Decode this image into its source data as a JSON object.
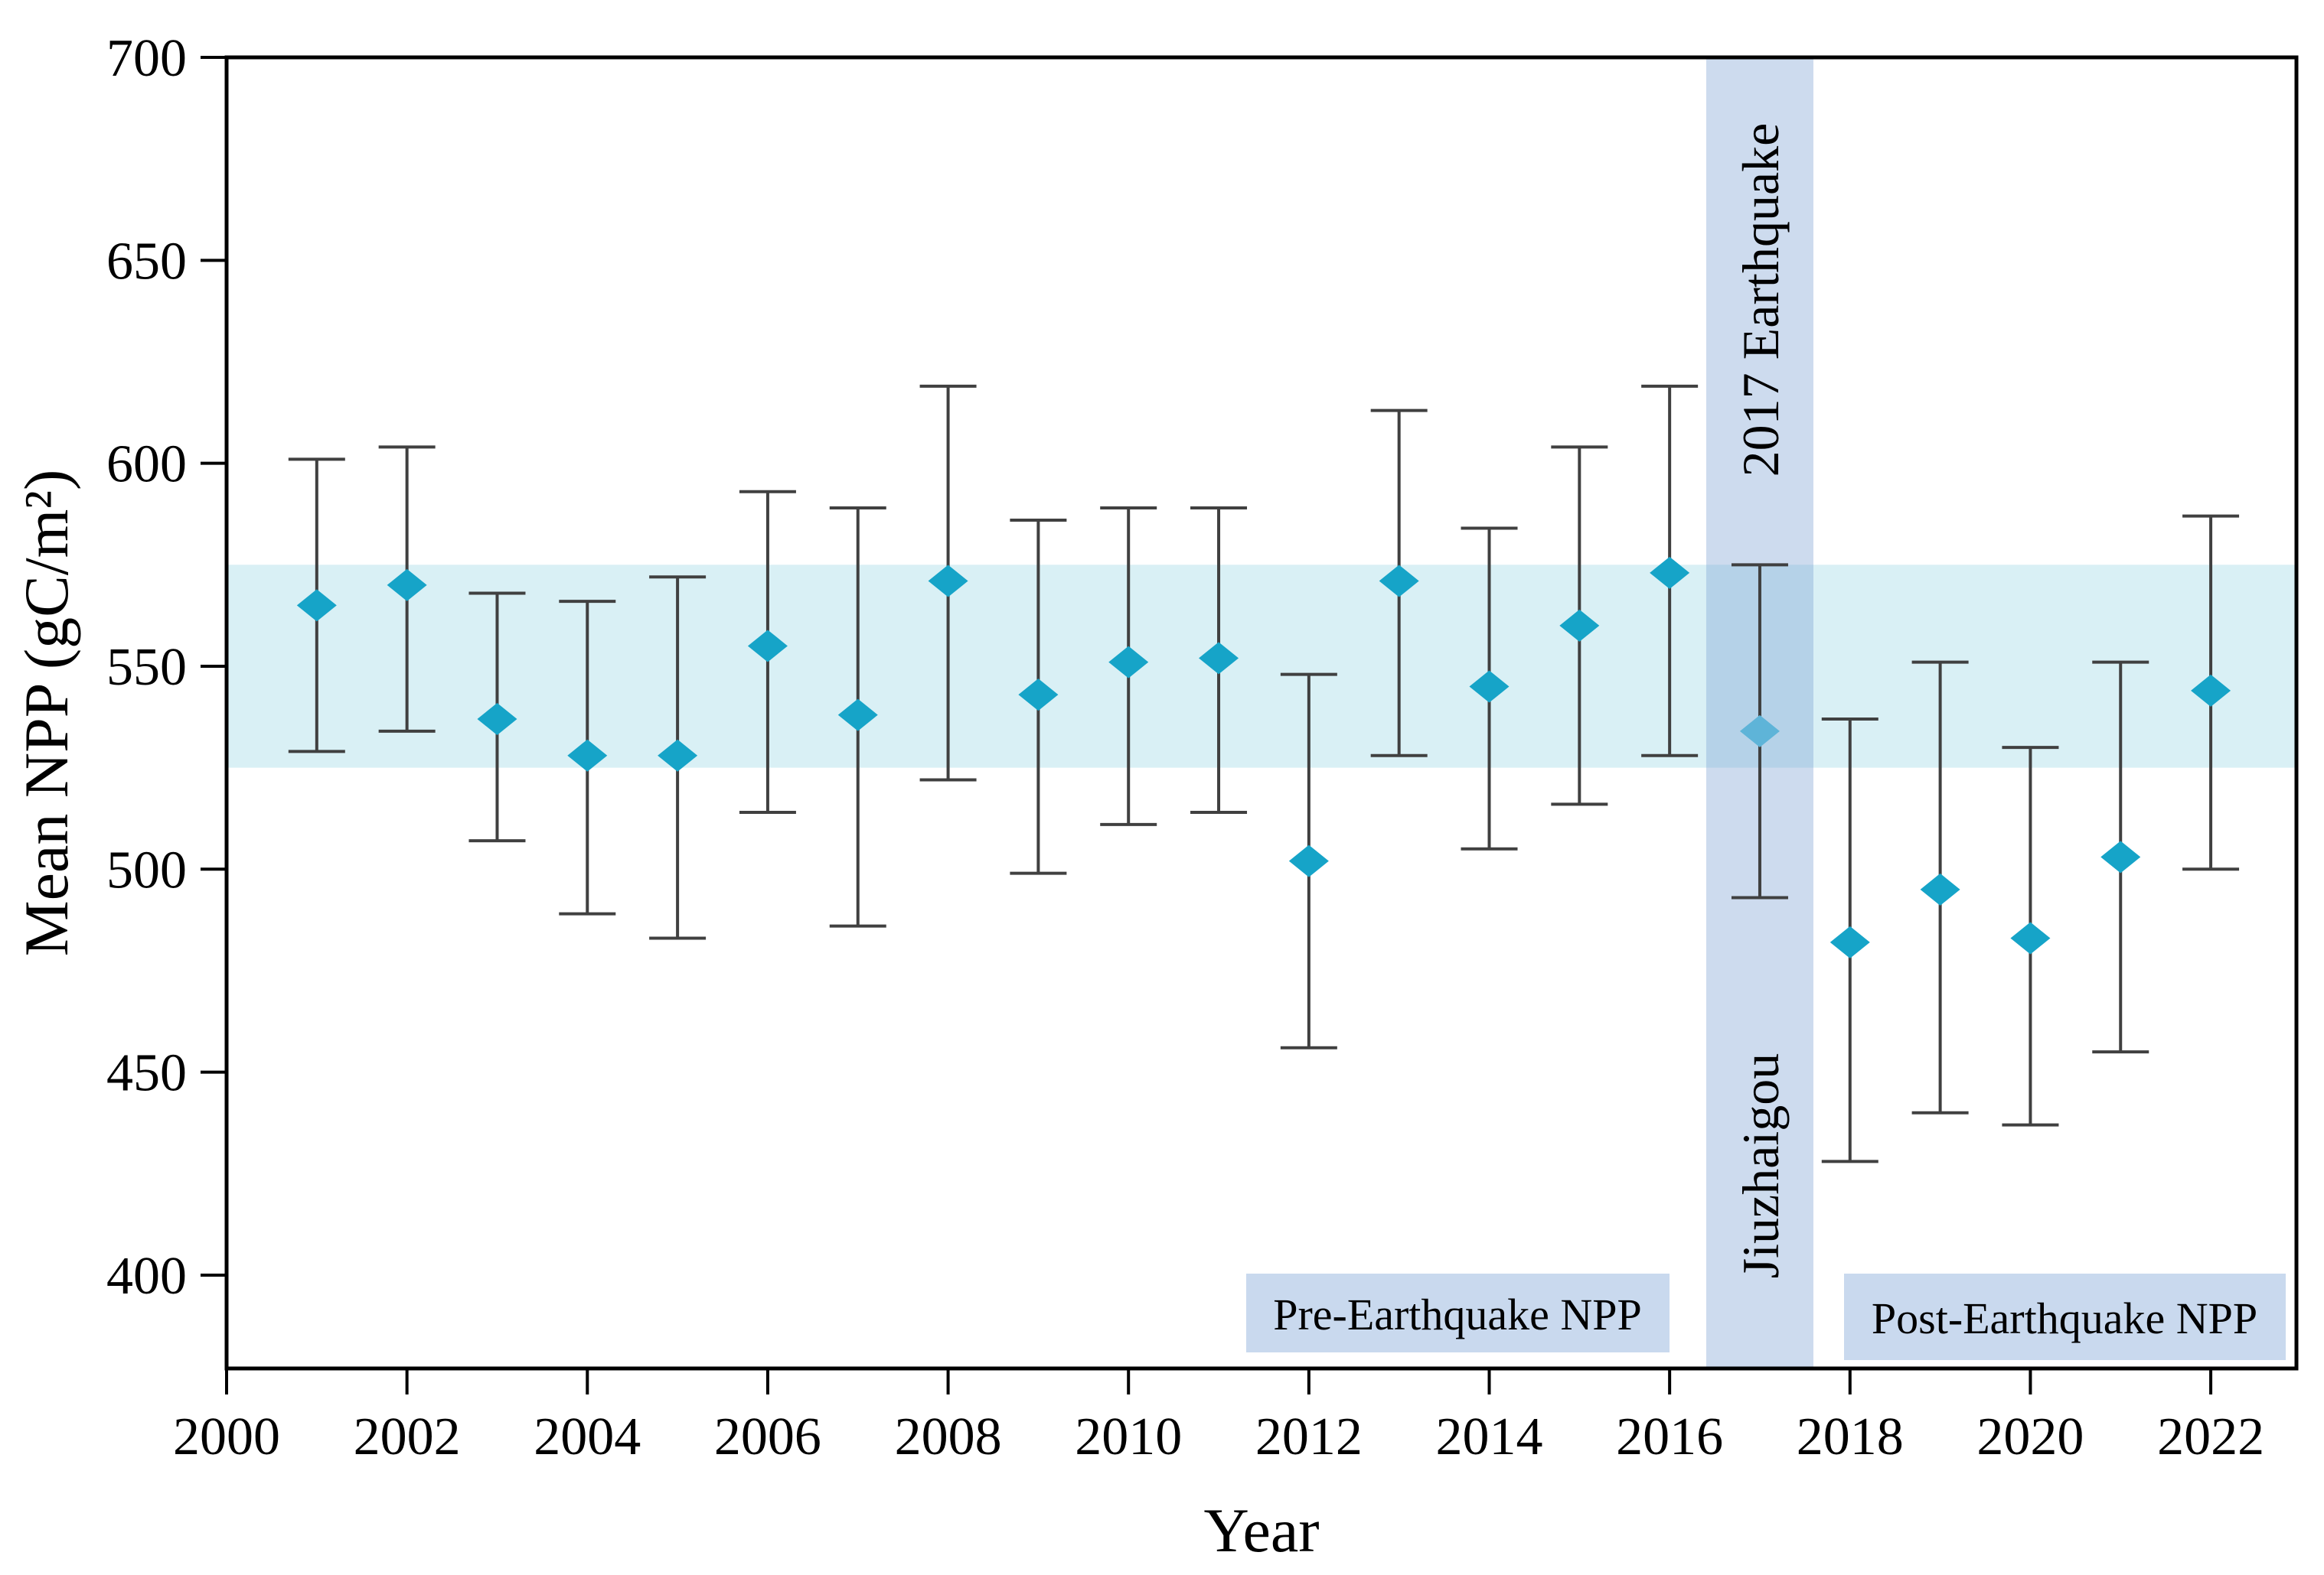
{
  "chart_data": {
    "type": "scatter",
    "subtype": "errorbar",
    "marker": "diamond",
    "title": "",
    "xlabel": "Year",
    "ylabel": "Mean NPP (gC/m²)",
    "xlim": [
      2000,
      2022.95
    ],
    "ylim": [
      377,
      700
    ],
    "x_ticks": [
      2000,
      2002,
      2004,
      2006,
      2008,
      2010,
      2012,
      2014,
      2016,
      2018,
      2020,
      2022
    ],
    "y_ticks": [
      400,
      450,
      500,
      550,
      600,
      650,
      700
    ],
    "grid": false,
    "legend": "none",
    "points": [
      {
        "year": 2001,
        "value": 565,
        "lo": 529,
        "hi": 601
      },
      {
        "year": 2002,
        "value": 570,
        "lo": 534,
        "hi": 604
      },
      {
        "year": 2003,
        "value": 537,
        "lo": 507,
        "hi": 568
      },
      {
        "year": 2004,
        "value": 528,
        "lo": 489,
        "hi": 566
      },
      {
        "year": 2005,
        "value": 528,
        "lo": 483,
        "hi": 572
      },
      {
        "year": 2006,
        "value": 555,
        "lo": 514,
        "hi": 593
      },
      {
        "year": 2007,
        "value": 538,
        "lo": 486,
        "hi": 589
      },
      {
        "year": 2008,
        "value": 571,
        "lo": 522,
        "hi": 619
      },
      {
        "year": 2009,
        "value": 543,
        "lo": 499,
        "hi": 586
      },
      {
        "year": 2010,
        "value": 551,
        "lo": 511,
        "hi": 589
      },
      {
        "year": 2011,
        "value": 552,
        "lo": 514,
        "hi": 589
      },
      {
        "year": 2012,
        "value": 502,
        "lo": 456,
        "hi": 548
      },
      {
        "year": 2013,
        "value": 571,
        "lo": 528,
        "hi": 613
      },
      {
        "year": 2014,
        "value": 545,
        "lo": 505,
        "hi": 584
      },
      {
        "year": 2015,
        "value": 560,
        "lo": 516,
        "hi": 604
      },
      {
        "year": 2016,
        "value": 573,
        "lo": 528,
        "hi": 619
      },
      {
        "year": 2017,
        "value": 534,
        "lo": 493,
        "hi": 575,
        "highlight": true
      },
      {
        "year": 2018,
        "value": 482,
        "lo": 428,
        "hi": 537
      },
      {
        "year": 2019,
        "value": 495,
        "lo": 440,
        "hi": 551
      },
      {
        "year": 2020,
        "value": 483,
        "lo": 437,
        "hi": 530
      },
      {
        "year": 2021,
        "value": 503,
        "lo": 455,
        "hi": 551
      },
      {
        "year": 2022,
        "value": 544,
        "lo": 500,
        "hi": 587
      }
    ],
    "bands": {
      "horizontal": {
        "value_from": 525,
        "value_to": 575,
        "color": "#d9f0f5"
      },
      "vertical": {
        "center_year": 2017,
        "label_top": "2017  Earthquake",
        "label_bottom": "Jiuzhaigou",
        "color_rgba": "rgba(124,160,210,0.38)"
      }
    },
    "annotations": [
      {
        "text": "Pre-Earthquake NPP"
      },
      {
        "text": "Post-Earthquake NPP"
      }
    ],
    "colors": {
      "marker": "#16a4c8",
      "marker_highlight": "#5eb4d8",
      "errorbar": "#404040",
      "axis": "#000000",
      "label_box": "#c9d9ee",
      "text": "#000000",
      "background": "#ffffff"
    }
  }
}
